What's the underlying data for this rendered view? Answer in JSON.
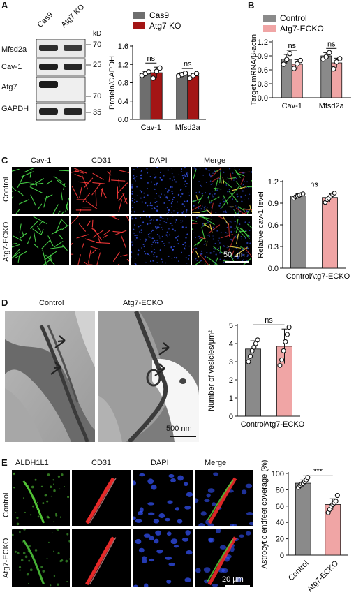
{
  "panels": {
    "A": {
      "letter": "A",
      "lanes": [
        "Cas9",
        "Atg7 KO"
      ],
      "kd_label": "kD",
      "blots": [
        {
          "name": "Mfsd2a",
          "marker": "70"
        },
        {
          "name": "Cav-1",
          "marker": "25"
        },
        {
          "name": "Atg7",
          "marker": "70"
        },
        {
          "name": "GAPDH",
          "marker": "35"
        }
      ]
    },
    "B": {
      "letter": "B"
    },
    "C": {
      "letter": "C",
      "columns": [
        "Cav-1",
        "CD31",
        "DAPI",
        "Merge"
      ],
      "rows": [
        "Control",
        "Atg7-ECKO"
      ],
      "scalebar": "50 μm"
    },
    "D": {
      "letter": "D",
      "columns": [
        "Control",
        "Atg7-ECKO"
      ],
      "scalebar": "500 nm"
    },
    "E": {
      "letter": "E",
      "columns": [
        "ALDH1L1",
        "CD31",
        "DAPI",
        "Merge"
      ],
      "rows": [
        "Control",
        "Atg7-ECKO"
      ],
      "scalebar": "20 μm"
    }
  },
  "colors": {
    "cas9": "#6e6e6e",
    "atg7ko": "#a31515",
    "control_bar": "#8a8a8a",
    "ecko_bar": "#f0a5a5"
  },
  "chart_data": [
    {
      "id": "A",
      "type": "bar",
      "categories": [
        "Cav-1",
        "Mfsd2a"
      ],
      "series": [
        {
          "name": "Cas9",
          "values": [
            1.0,
            0.98
          ],
          "err": [
            0.05,
            0.04
          ],
          "points": [
            [
              0.96,
              1.0,
              1.04
            ],
            [
              0.95,
              0.98,
              1.01
            ]
          ]
        },
        {
          "name": "Atg7 KO",
          "values": [
            1.02,
            0.95
          ],
          "err": [
            0.12,
            0.06
          ],
          "points": [
            [
              0.9,
              1.05,
              1.12
            ],
            [
              0.9,
              0.96,
              1.0
            ]
          ]
        }
      ],
      "ylabel": "Protein/GAPDH",
      "ylim": [
        0,
        1.6
      ],
      "yticks": [
        0.0,
        0.4,
        0.8,
        1.2,
        1.6
      ],
      "significance": [
        "ns",
        "ns"
      ]
    },
    {
      "id": "B",
      "type": "bar",
      "categories": [
        "Cav-1",
        "Mfsd2a"
      ],
      "series": [
        {
          "name": "Control",
          "values": [
            0.83,
            0.9
          ],
          "err": [
            0.1,
            0.07
          ],
          "points": [
            [
              0.72,
              0.82,
              0.95
            ],
            [
              0.83,
              0.88,
              0.97
            ]
          ]
        },
        {
          "name": "Atg7-ECKO",
          "values": [
            0.72,
            0.75
          ],
          "err": [
            0.1,
            0.1
          ],
          "points": [
            [
              0.63,
              0.73,
              0.8
            ],
            [
              0.62,
              0.77,
              0.84
            ]
          ]
        }
      ],
      "ylabel": "Target mRNA/β-actin",
      "ylim": [
        0,
        1.2
      ],
      "yticks": [
        0.0,
        0.3,
        0.6,
        0.9,
        1.2
      ],
      "significance": [
        "ns",
        "ns"
      ]
    },
    {
      "id": "C",
      "type": "bar",
      "categories": [
        "Control",
        "Atg7-ECKO"
      ],
      "values": [
        1.0,
        0.98
      ],
      "err": [
        0.03,
        0.06
      ],
      "points": [
        [
          0.97,
          0.99,
          1.0,
          1.01,
          1.02,
          1.03
        ],
        [
          0.91,
          0.95,
          0.97,
          1.0,
          1.02,
          1.04
        ]
      ],
      "ylabel": "Relative cav-1 level",
      "ylim": [
        0,
        1.2
      ],
      "yticks": [
        0.0,
        0.3,
        0.6,
        0.9,
        1.2
      ],
      "significance": [
        "ns"
      ]
    },
    {
      "id": "D",
      "type": "bar",
      "categories": [
        "Control",
        "Atg7-ECKO"
      ],
      "values": [
        3.7,
        3.85
      ],
      "err": [
        0.45,
        0.95
      ],
      "points": [
        [
          3.0,
          3.3,
          3.6,
          3.8,
          4.0,
          4.2
        ],
        [
          2.8,
          3.1,
          3.6,
          4.1,
          4.5,
          4.9
        ]
      ],
      "ylabel": "Number of vesicles/μm²",
      "ylim": [
        0,
        5
      ],
      "yticks": [
        0,
        1,
        2,
        3,
        4,
        5
      ],
      "significance": [
        "ns"
      ]
    },
    {
      "id": "E",
      "type": "bar",
      "categories": [
        "Control",
        "Atg7-ECKO"
      ],
      "values": [
        88,
        62
      ],
      "err": [
        4,
        7
      ],
      "points": [
        [
          83,
          85,
          87,
          88,
          90,
          92,
          95
        ],
        [
          52,
          56,
          60,
          62,
          64,
          66,
          73
        ]
      ],
      "ylabel": "Astrocytic endfeet coverage (%)",
      "ylim": [
        0,
        100
      ],
      "yticks": [
        0,
        20,
        40,
        60,
        80,
        100
      ],
      "significance": [
        "***"
      ]
    }
  ]
}
